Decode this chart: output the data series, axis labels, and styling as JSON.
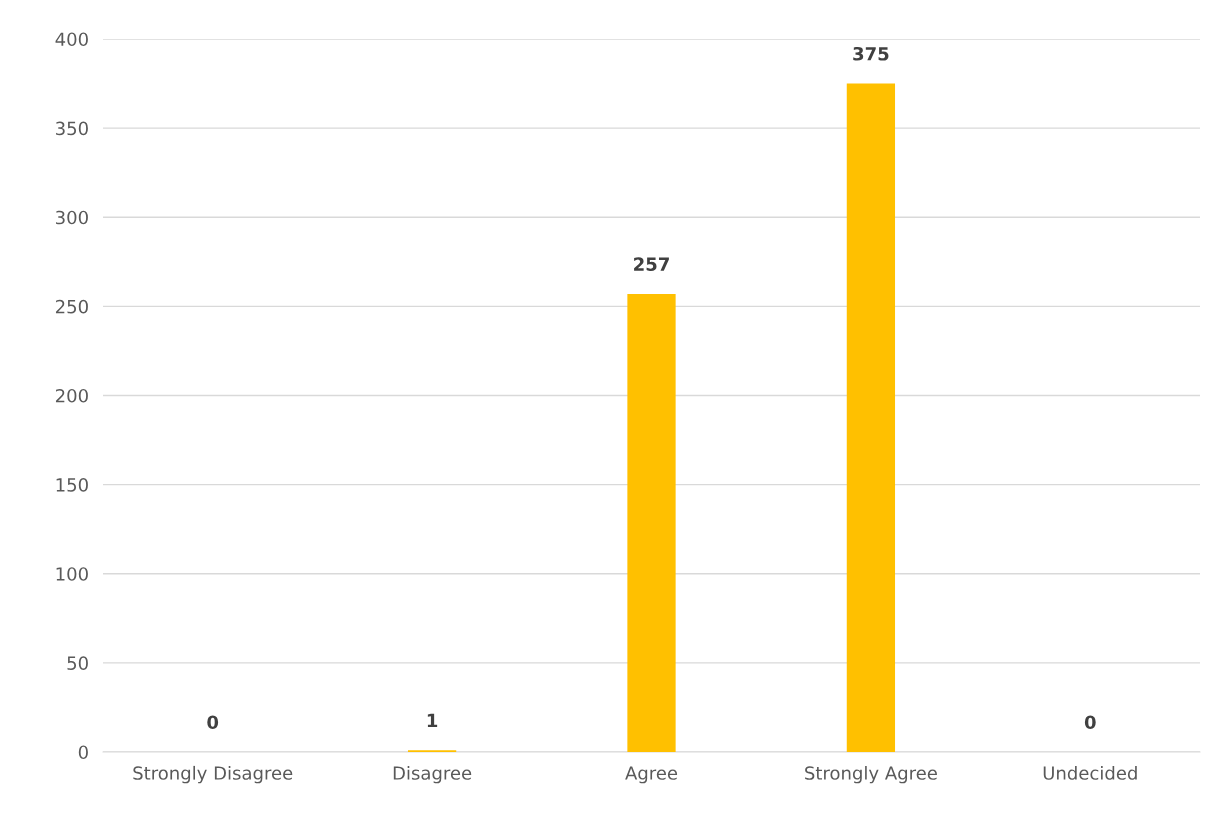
{
  "chart_data": {
    "type": "bar",
    "categories": [
      "Strongly Disagree",
      "Disagree",
      "Agree",
      "Strongly Agree",
      "Undecided"
    ],
    "values": [
      0,
      1,
      257,
      375,
      0
    ],
    "color": "#ffc000",
    "ylim": [
      0,
      400
    ],
    "yticks": [
      0,
      50,
      100,
      150,
      200,
      250,
      300,
      350,
      400
    ],
    "grid": "y",
    "data_labels": true,
    "legend": false
  }
}
